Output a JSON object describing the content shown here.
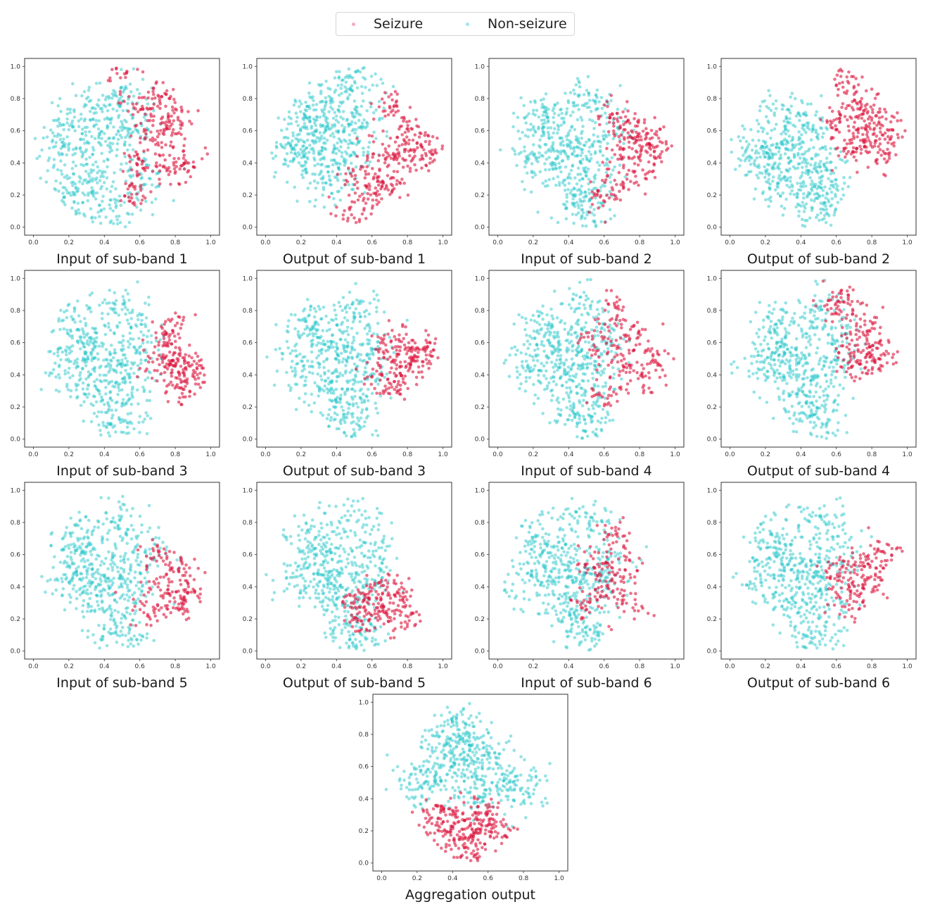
{
  "legend": {
    "seizure_label": "Seizure",
    "nonseizure_label": "Non-seizure",
    "seizure_color": "#dc143c",
    "nonseizure_color": "#2cc8cc"
  },
  "chart_data": [
    {
      "type": "scatter",
      "title": "Input of sub-band 1",
      "xlim": [
        0,
        1
      ],
      "ylim": [
        0,
        1
      ],
      "xticks": [
        "0.0",
        "0.2",
        "0.4",
        "0.6",
        "0.8",
        "1.0"
      ],
      "yticks": [
        "0.0",
        "0.2",
        "0.4",
        "0.6",
        "0.8",
        "1.0"
      ],
      "seizure_points": [
        [
          0.8,
          0.7
        ],
        [
          0.75,
          0.6
        ],
        [
          0.6,
          0.4
        ],
        [
          0.5,
          1.0
        ],
        [
          0.7,
          0.8
        ],
        [
          0.85,
          0.45
        ],
        [
          0.55,
          0.2
        ],
        [
          0.65,
          0.55
        ],
        [
          0.78,
          0.35
        ],
        [
          0.6,
          0.75
        ]
      ],
      "nonseizure_points": [
        [
          0.4,
          0.5
        ],
        [
          0.2,
          0.6
        ],
        [
          0.3,
          0.3
        ],
        [
          0.5,
          0.8
        ],
        [
          0.45,
          0.1
        ],
        [
          0.15,
          0.45
        ],
        [
          0.55,
          0.6
        ],
        [
          0.35,
          0.7
        ],
        [
          0.25,
          0.2
        ],
        [
          0.6,
          0.3
        ]
      ]
    },
    {
      "type": "scatter",
      "title": "Output of sub-band 1",
      "xlim": [
        0,
        1
      ],
      "ylim": [
        0,
        1
      ],
      "xticks": [
        "0.0",
        "0.2",
        "0.4",
        "0.6",
        "0.8",
        "1.0"
      ],
      "yticks": [
        "0.0",
        "0.2",
        "0.4",
        "0.6",
        "0.8",
        "1.0"
      ],
      "seizure_points": [
        [
          0.75,
          0.5
        ],
        [
          0.7,
          0.3
        ],
        [
          0.8,
          0.6
        ],
        [
          0.6,
          0.2
        ],
        [
          0.85,
          0.4
        ],
        [
          0.5,
          0.1
        ],
        [
          0.7,
          0.75
        ],
        [
          0.65,
          0.45
        ],
        [
          0.9,
          0.5
        ],
        [
          0.55,
          0.3
        ]
      ],
      "nonseizure_points": [
        [
          0.3,
          0.6
        ],
        [
          0.4,
          0.8
        ],
        [
          0.2,
          0.5
        ],
        [
          0.45,
          0.5
        ],
        [
          0.35,
          0.3
        ],
        [
          0.5,
          0.9
        ],
        [
          0.25,
          0.7
        ],
        [
          0.55,
          0.65
        ],
        [
          0.15,
          0.45
        ],
        [
          0.4,
          0.4
        ]
      ]
    },
    {
      "type": "scatter",
      "title": "Input of sub-band 2",
      "xlim": [
        0,
        1
      ],
      "ylim": [
        0,
        1
      ],
      "xticks": [
        "0.0",
        "0.2",
        "0.4",
        "0.6",
        "0.8",
        "1.0"
      ],
      "yticks": [
        "0.0",
        "0.2",
        "0.4",
        "0.6",
        "0.8",
        "1.0"
      ],
      "seizure_points": [
        [
          0.75,
          0.6
        ],
        [
          0.8,
          0.4
        ],
        [
          0.85,
          0.55
        ],
        [
          0.7,
          0.3
        ],
        [
          0.65,
          0.7
        ],
        [
          0.9,
          0.5
        ],
        [
          0.6,
          0.2
        ],
        [
          0.72,
          0.5
        ]
      ],
      "nonseizure_points": [
        [
          0.4,
          0.5
        ],
        [
          0.3,
          0.6
        ],
        [
          0.5,
          0.8
        ],
        [
          0.2,
          0.45
        ],
        [
          0.45,
          0.2
        ],
        [
          0.55,
          0.4
        ],
        [
          0.35,
          0.35
        ],
        [
          0.6,
          0.6
        ],
        [
          0.25,
          0.7
        ],
        [
          0.5,
          0.1
        ]
      ]
    },
    {
      "type": "scatter",
      "title": "Output of sub-band 2",
      "xlim": [
        0,
        1
      ],
      "ylim": [
        0,
        1
      ],
      "xticks": [
        "0.0",
        "0.2",
        "0.4",
        "0.6",
        "0.8",
        "1.0"
      ],
      "yticks": [
        "0.0",
        "0.2",
        "0.4",
        "0.6",
        "0.8",
        "1.0"
      ],
      "seizure_points": [
        [
          0.75,
          0.6
        ],
        [
          0.8,
          0.55
        ],
        [
          0.7,
          0.75
        ],
        [
          0.85,
          0.45
        ],
        [
          0.65,
          0.9
        ],
        [
          0.9,
          0.6
        ],
        [
          0.6,
          0.65
        ],
        [
          0.78,
          0.7
        ],
        [
          0.7,
          0.5
        ]
      ],
      "nonseizure_points": [
        [
          0.35,
          0.5
        ],
        [
          0.4,
          0.3
        ],
        [
          0.2,
          0.5
        ],
        [
          0.5,
          0.2
        ],
        [
          0.3,
          0.7
        ],
        [
          0.45,
          0.6
        ],
        [
          0.55,
          0.35
        ],
        [
          0.15,
          0.4
        ],
        [
          0.5,
          0.1
        ],
        [
          0.25,
          0.3
        ]
      ]
    },
    {
      "type": "scatter",
      "title": "Input of sub-band 3",
      "xlim": [
        0,
        1
      ],
      "ylim": [
        0,
        1
      ],
      "xticks": [
        "0.0",
        "0.2",
        "0.4",
        "0.6",
        "0.8",
        "1.0"
      ],
      "yticks": [
        "0.0",
        "0.2",
        "0.4",
        "0.6",
        "0.8",
        "1.0"
      ],
      "seizure_points": [
        [
          0.8,
          0.5
        ],
        [
          0.85,
          0.4
        ],
        [
          0.75,
          0.6
        ],
        [
          0.9,
          0.45
        ],
        [
          0.7,
          0.45
        ],
        [
          0.82,
          0.3
        ],
        [
          0.78,
          0.7
        ]
      ],
      "nonseizure_points": [
        [
          0.4,
          0.5
        ],
        [
          0.3,
          0.6
        ],
        [
          0.5,
          0.8
        ],
        [
          0.2,
          0.45
        ],
        [
          0.45,
          0.2
        ],
        [
          0.55,
          0.4
        ],
        [
          0.35,
          0.35
        ],
        [
          0.6,
          0.6
        ],
        [
          0.25,
          0.7
        ],
        [
          0.5,
          0.1
        ]
      ]
    },
    {
      "type": "scatter",
      "title": "Output of sub-band 3",
      "xlim": [
        0,
        1
      ],
      "ylim": [
        0,
        1
      ],
      "xticks": [
        "0.0",
        "0.2",
        "0.4",
        "0.6",
        "0.8",
        "1.0"
      ],
      "yticks": [
        "0.0",
        "0.2",
        "0.4",
        "0.6",
        "0.8",
        "1.0"
      ],
      "seizure_points": [
        [
          0.75,
          0.55
        ],
        [
          0.8,
          0.45
        ],
        [
          0.7,
          0.6
        ],
        [
          0.85,
          0.5
        ],
        [
          0.65,
          0.4
        ],
        [
          0.9,
          0.55
        ],
        [
          0.72,
          0.3
        ]
      ],
      "nonseizure_points": [
        [
          0.4,
          0.5
        ],
        [
          0.3,
          0.6
        ],
        [
          0.5,
          0.8
        ],
        [
          0.2,
          0.45
        ],
        [
          0.45,
          0.2
        ],
        [
          0.55,
          0.4
        ],
        [
          0.35,
          0.35
        ],
        [
          0.6,
          0.6
        ],
        [
          0.25,
          0.7
        ],
        [
          0.5,
          0.1
        ]
      ]
    },
    {
      "type": "scatter",
      "title": "Input of sub-band 4",
      "xlim": [
        0,
        1
      ],
      "ylim": [
        0,
        1
      ],
      "xticks": [
        "0.0",
        "0.2",
        "0.4",
        "0.6",
        "0.8",
        "1.0"
      ],
      "yticks": [
        "0.0",
        "0.2",
        "0.4",
        "0.6",
        "0.8",
        "1.0"
      ],
      "seizure_points": [
        [
          0.7,
          0.5
        ],
        [
          0.8,
          0.4
        ],
        [
          0.6,
          0.3
        ],
        [
          0.75,
          0.65
        ],
        [
          0.85,
          0.5
        ],
        [
          0.65,
          0.8
        ],
        [
          0.55,
          0.6
        ]
      ],
      "nonseizure_points": [
        [
          0.4,
          0.5
        ],
        [
          0.3,
          0.6
        ],
        [
          0.5,
          0.8
        ],
        [
          0.2,
          0.45
        ],
        [
          0.45,
          0.2
        ],
        [
          0.55,
          0.4
        ],
        [
          0.35,
          0.35
        ],
        [
          0.6,
          0.6
        ],
        [
          0.25,
          0.7
        ],
        [
          0.5,
          0.1
        ]
      ]
    },
    {
      "type": "scatter",
      "title": "Output of sub-band 4",
      "xlim": [
        0,
        1
      ],
      "ylim": [
        0,
        1
      ],
      "xticks": [
        "0.0",
        "0.2",
        "0.4",
        "0.6",
        "0.8",
        "1.0"
      ],
      "yticks": [
        "0.0",
        "0.2",
        "0.4",
        "0.6",
        "0.8",
        "1.0"
      ],
      "seizure_points": [
        [
          0.7,
          0.6
        ],
        [
          0.75,
          0.7
        ],
        [
          0.8,
          0.5
        ],
        [
          0.65,
          0.8
        ],
        [
          0.85,
          0.55
        ],
        [
          0.7,
          0.45
        ],
        [
          0.6,
          0.9
        ]
      ],
      "nonseizure_points": [
        [
          0.4,
          0.5
        ],
        [
          0.3,
          0.6
        ],
        [
          0.5,
          0.8
        ],
        [
          0.2,
          0.45
        ],
        [
          0.45,
          0.2
        ],
        [
          0.55,
          0.4
        ],
        [
          0.35,
          0.35
        ],
        [
          0.6,
          0.6
        ],
        [
          0.25,
          0.7
        ],
        [
          0.5,
          0.1
        ]
      ]
    },
    {
      "type": "scatter",
      "title": "Input of sub-band 5",
      "xlim": [
        0,
        1
      ],
      "ylim": [
        0,
        1
      ],
      "xticks": [
        "0.0",
        "0.2",
        "0.4",
        "0.6",
        "0.8",
        "1.0"
      ],
      "yticks": [
        "0.0",
        "0.2",
        "0.4",
        "0.6",
        "0.8",
        "1.0"
      ],
      "seizure_points": [
        [
          0.75,
          0.4
        ],
        [
          0.8,
          0.3
        ],
        [
          0.7,
          0.6
        ],
        [
          0.85,
          0.5
        ],
        [
          0.65,
          0.25
        ],
        [
          0.9,
          0.35
        ]
      ],
      "nonseizure_points": [
        [
          0.4,
          0.5
        ],
        [
          0.3,
          0.6
        ],
        [
          0.5,
          0.8
        ],
        [
          0.2,
          0.45
        ],
        [
          0.45,
          0.2
        ],
        [
          0.55,
          0.4
        ],
        [
          0.35,
          0.35
        ],
        [
          0.6,
          0.6
        ],
        [
          0.25,
          0.7
        ],
        [
          0.5,
          0.1
        ]
      ]
    },
    {
      "type": "scatter",
      "title": "Output of sub-band 5",
      "xlim": [
        0,
        1
      ],
      "ylim": [
        0,
        1
      ],
      "xticks": [
        "0.0",
        "0.2",
        "0.4",
        "0.6",
        "0.8",
        "1.0"
      ],
      "yticks": [
        "0.0",
        "0.2",
        "0.4",
        "0.6",
        "0.8",
        "1.0"
      ],
      "seizure_points": [
        [
          0.6,
          0.3
        ],
        [
          0.7,
          0.25
        ],
        [
          0.55,
          0.2
        ],
        [
          0.75,
          0.35
        ],
        [
          0.65,
          0.4
        ],
        [
          0.8,
          0.2
        ],
        [
          0.5,
          0.3
        ]
      ],
      "nonseizure_points": [
        [
          0.4,
          0.5
        ],
        [
          0.3,
          0.6
        ],
        [
          0.5,
          0.8
        ],
        [
          0.2,
          0.45
        ],
        [
          0.45,
          0.2
        ],
        [
          0.55,
          0.4
        ],
        [
          0.35,
          0.35
        ],
        [
          0.6,
          0.6
        ],
        [
          0.25,
          0.7
        ],
        [
          0.5,
          0.1
        ]
      ]
    },
    {
      "type": "scatter",
      "title": "Input of sub-band 6",
      "xlim": [
        0,
        1
      ],
      "ylim": [
        0,
        1
      ],
      "xticks": [
        "0.0",
        "0.2",
        "0.4",
        "0.6",
        "0.8",
        "1.0"
      ],
      "yticks": [
        "0.0",
        "0.2",
        "0.4",
        "0.6",
        "0.8",
        "1.0"
      ],
      "seizure_points": [
        [
          0.6,
          0.4
        ],
        [
          0.7,
          0.5
        ],
        [
          0.5,
          0.3
        ],
        [
          0.65,
          0.7
        ],
        [
          0.55,
          0.55
        ],
        [
          0.75,
          0.3
        ]
      ],
      "nonseizure_points": [
        [
          0.4,
          0.5
        ],
        [
          0.3,
          0.6
        ],
        [
          0.5,
          0.8
        ],
        [
          0.2,
          0.45
        ],
        [
          0.45,
          0.2
        ],
        [
          0.55,
          0.4
        ],
        [
          0.35,
          0.35
        ],
        [
          0.6,
          0.6
        ],
        [
          0.25,
          0.7
        ],
        [
          0.5,
          0.1
        ]
      ]
    },
    {
      "type": "scatter",
      "title": "Output of sub-band 6",
      "xlim": [
        0,
        1
      ],
      "ylim": [
        0,
        1
      ],
      "xticks": [
        "0.0",
        "0.2",
        "0.4",
        "0.6",
        "0.8",
        "1.0"
      ],
      "yticks": [
        "0.0",
        "0.2",
        "0.4",
        "0.6",
        "0.8",
        "1.0"
      ],
      "seizure_points": [
        [
          0.7,
          0.4
        ],
        [
          0.75,
          0.55
        ],
        [
          0.8,
          0.45
        ],
        [
          0.65,
          0.3
        ],
        [
          0.85,
          0.6
        ],
        [
          0.6,
          0.5
        ]
      ],
      "nonseizure_points": [
        [
          0.4,
          0.5
        ],
        [
          0.3,
          0.6
        ],
        [
          0.5,
          0.8
        ],
        [
          0.2,
          0.45
        ],
        [
          0.45,
          0.2
        ],
        [
          0.55,
          0.4
        ],
        [
          0.35,
          0.35
        ],
        [
          0.6,
          0.6
        ],
        [
          0.25,
          0.7
        ],
        [
          0.5,
          0.1
        ]
      ]
    },
    {
      "type": "scatter",
      "title": "Aggregation output",
      "xlim": [
        0,
        1
      ],
      "ylim": [
        0,
        1
      ],
      "xticks": [
        "0.0",
        "0.2",
        "0.4",
        "0.6",
        "0.8",
        "1.0"
      ],
      "yticks": [
        "0.0",
        "0.2",
        "0.4",
        "0.6",
        "0.8",
        "1.0"
      ],
      "seizure_points": [
        [
          0.4,
          0.25
        ],
        [
          0.5,
          0.15
        ],
        [
          0.45,
          0.3
        ],
        [
          0.55,
          0.2
        ],
        [
          0.35,
          0.2
        ],
        [
          0.6,
          0.3
        ],
        [
          0.5,
          0.05
        ],
        [
          0.3,
          0.3
        ],
        [
          0.65,
          0.2
        ]
      ],
      "nonseizure_points": [
        [
          0.4,
          0.6
        ],
        [
          0.5,
          0.7
        ],
        [
          0.3,
          0.55
        ],
        [
          0.6,
          0.65
        ],
        [
          0.45,
          0.85
        ],
        [
          0.2,
          0.5
        ],
        [
          0.7,
          0.5
        ],
        [
          0.55,
          0.45
        ],
        [
          0.35,
          0.75
        ],
        [
          0.8,
          0.45
        ]
      ]
    }
  ]
}
